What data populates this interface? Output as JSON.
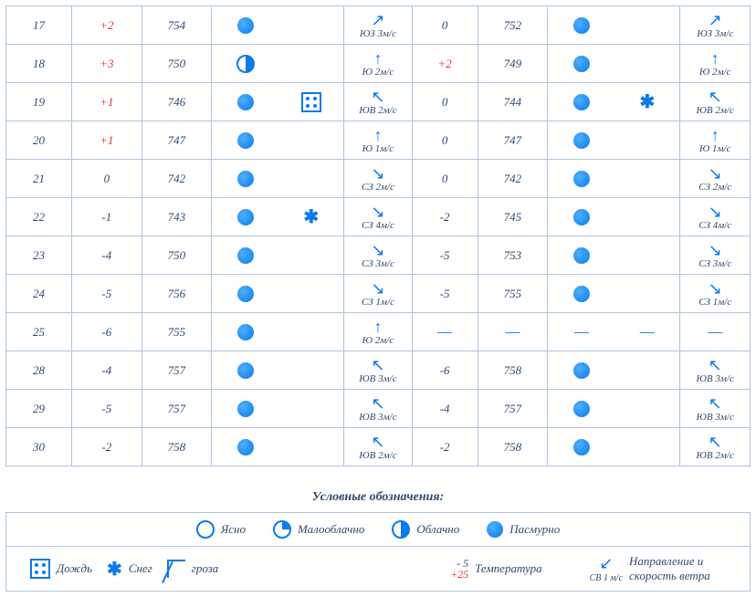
{
  "style": {
    "border_color": "#b0c4de",
    "icon_blue": "#0a7ae8",
    "text_color": "#2e4a6e",
    "red": "#d33"
  },
  "arrows": {
    "N": "↑",
    "NE": "↗",
    "E": "→",
    "SE": "↘",
    "S": "↓",
    "SW": "↙",
    "W": "←",
    "NW": "↖"
  },
  "rows": [
    {
      "d": "17",
      "t1": "+2",
      "p1": "754",
      "i1": "f",
      "x1": "",
      "w1": {
        "a": "NE",
        "t": "ЮЗ 3м/с"
      },
      "t2": "0",
      "p2": "752",
      "i2": "f",
      "x2": "",
      "w2": {
        "a": "NE",
        "t": "ЮЗ 3м/с"
      }
    },
    {
      "d": "18",
      "t1": "+3",
      "p1": "750",
      "i1": "h",
      "x1": "",
      "w1": {
        "a": "N",
        "t": "Ю 2м/с"
      },
      "t2": "+2",
      "p2": "749",
      "i2": "f",
      "x2": "",
      "w2": {
        "a": "N",
        "t": "Ю 2м/с"
      }
    },
    {
      "d": "19",
      "t1": "+1",
      "p1": "746",
      "i1": "f",
      "x1": "d",
      "w1": {
        "a": "NW",
        "t": "ЮВ 2м/с"
      },
      "t2": "0",
      "p2": "744",
      "i2": "f",
      "x2": "s",
      "w2": {
        "a": "NW",
        "t": "ЮВ 2м/с"
      }
    },
    {
      "d": "20",
      "t1": "+1",
      "p1": "747",
      "i1": "f",
      "x1": "",
      "w1": {
        "a": "N",
        "t": "Ю 1м/с"
      },
      "t2": "0",
      "p2": "747",
      "i2": "f",
      "x2": "",
      "w2": {
        "a": "N",
        "t": "Ю 1м/с"
      }
    },
    {
      "d": "21",
      "t1": "0",
      "p1": "742",
      "i1": "f",
      "x1": "",
      "w1": {
        "a": "SE",
        "t": "СЗ 2м/с"
      },
      "t2": "0",
      "p2": "742",
      "i2": "f",
      "x2": "",
      "w2": {
        "a": "SE",
        "t": "СЗ 2м/с"
      }
    },
    {
      "d": "22",
      "t1": "-1",
      "p1": "743",
      "i1": "f",
      "x1": "s",
      "w1": {
        "a": "SE",
        "t": "СЗ 4м/с"
      },
      "t2": "-2",
      "p2": "745",
      "i2": "f",
      "x2": "",
      "w2": {
        "a": "SE",
        "t": "СЗ 4м/с"
      }
    },
    {
      "d": "23",
      "t1": "-4",
      "p1": "750",
      "i1": "f",
      "x1": "",
      "w1": {
        "a": "SE",
        "t": "СЗ 3м/с"
      },
      "t2": "-5",
      "p2": "753",
      "i2": "f",
      "x2": "",
      "w2": {
        "a": "SE",
        "t": "СЗ 3м/с"
      }
    },
    {
      "d": "24",
      "t1": "-5",
      "p1": "756",
      "i1": "f",
      "x1": "",
      "w1": {
        "a": "SE",
        "t": "СЗ 1м/с"
      },
      "t2": "-5",
      "p2": "755",
      "i2": "f",
      "x2": "",
      "w2": {
        "a": "SE",
        "t": "СЗ 1м/с"
      }
    },
    {
      "d": "25",
      "t1": "-6",
      "p1": "755",
      "i1": "f",
      "x1": "",
      "w1": {
        "a": "N",
        "t": "Ю 2м/с"
      },
      "t2": "—",
      "p2": "—",
      "i2": "—",
      "x2": "—",
      "w2": {
        "a": "—",
        "t": ""
      }
    },
    {
      "d": "28",
      "t1": "-4",
      "p1": "757",
      "i1": "f",
      "x1": "",
      "w1": {
        "a": "NW",
        "t": "ЮВ 3м/с"
      },
      "t2": "-6",
      "p2": "758",
      "i2": "f",
      "x2": "",
      "w2": {
        "a": "NW",
        "t": "ЮВ 3м/с"
      }
    },
    {
      "d": "29",
      "t1": "-5",
      "p1": "757",
      "i1": "f",
      "x1": "",
      "w1": {
        "a": "NW",
        "t": "ЮВ 3м/с"
      },
      "t2": "-4",
      "p2": "757",
      "i2": "f",
      "x2": "",
      "w2": {
        "a": "NW",
        "t": "ЮВ 3м/с"
      }
    },
    {
      "d": "30",
      "t1": "-2",
      "p1": "758",
      "i1": "f",
      "x1": "",
      "w1": {
        "a": "NW",
        "t": "ЮВ 2м/с"
      },
      "t2": "-2",
      "p2": "758",
      "i2": "f",
      "x2": "",
      "w2": {
        "a": "NW",
        "t": "ЮВ 2м/с"
      }
    }
  ],
  "legend": {
    "title": "Условные обозначения:",
    "clear": "Ясно",
    "partly": "Малооблачно",
    "cloudy": "Облачно",
    "overcast": "Пасмурно",
    "rain": "Дождь",
    "snow": "Снег",
    "storm": "гроза",
    "temp_neg": "- 5",
    "temp_pos": "+25",
    "temp_lbl": "Температура",
    "wind_sample": "СВ 1 м/с",
    "wind_lbl": "Направление и скорость ветра"
  }
}
